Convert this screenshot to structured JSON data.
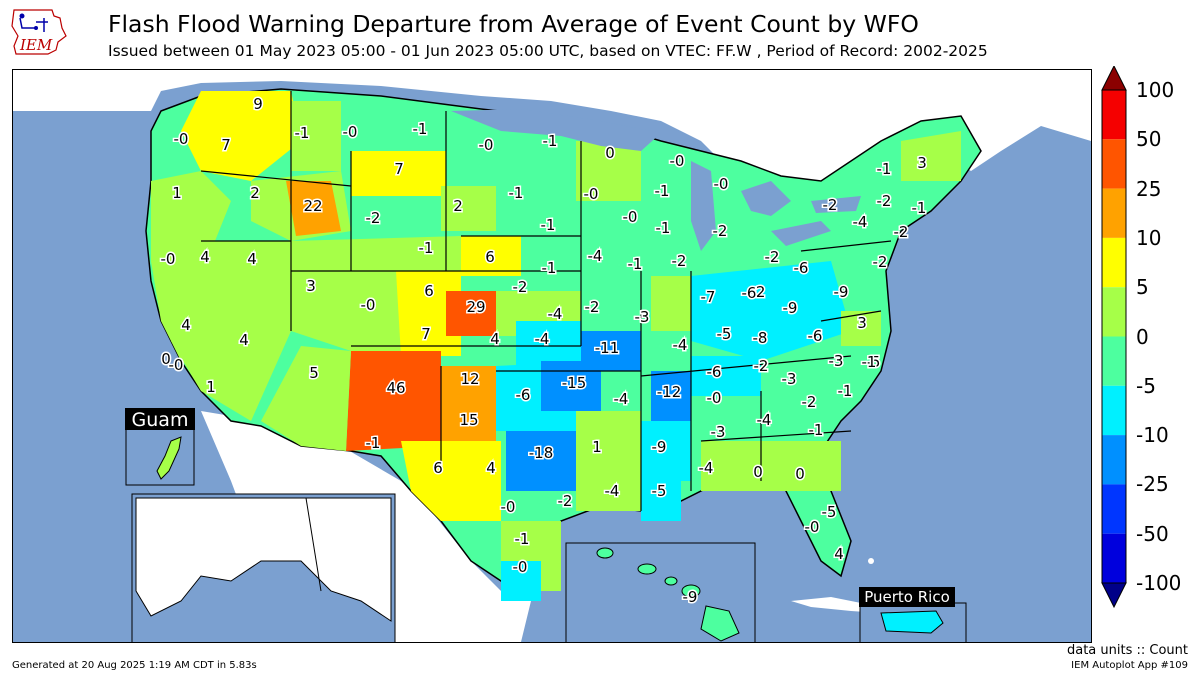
{
  "header": {
    "logo_text": "IEM",
    "title": "Flash Flood Warning Departure from Average of Event Count by WFO",
    "subtitle": "Issued between 01 May 2023 05:00 - 01 Jun 2023 05:00 UTC, based on VTEC: FF.W  , Period of Record: 2002-2025"
  },
  "colorbar": {
    "ticks": [
      "100",
      "50",
      "25",
      "10",
      "5",
      "0",
      "-5",
      "-10",
      "-25",
      "-50",
      "-100"
    ],
    "colors": [
      "#f50000",
      "#ff5500",
      "#ffa200",
      "#ffff00",
      "#a6ff48",
      "#4dff9f",
      "#00f0ff",
      "#0090ff",
      "#0036ff",
      "#0000dd"
    ],
    "over_color": "#8b0000",
    "under_color": "#000088"
  },
  "map": {
    "inset_labels": {
      "guam": "Guam",
      "puerto_rico": "Puerto Rico"
    },
    "wfo_values": [
      "9",
      "-0",
      "7",
      "1",
      "2",
      "22",
      "-1",
      "-0",
      "-1",
      "-0",
      "-1",
      "7",
      "0",
      "-0",
      "-0",
      "-1",
      "-0",
      "-1",
      "-2",
      "2",
      "-1",
      "-0",
      "-1",
      "3",
      "-1",
      "-2",
      "-2",
      "-1",
      "-0",
      "4",
      "4",
      "3",
      "-2",
      "-1",
      "-2",
      "-4",
      "-1",
      "-1",
      "-2",
      "-4",
      "-2",
      "6",
      "-4",
      "-2",
      "-3",
      "-6",
      "-2",
      "-0",
      "6",
      "-2",
      "29",
      "-0",
      "-2",
      "-4",
      "-3",
      "-6",
      "-7",
      "-9",
      "-9",
      "-2",
      "4",
      "7",
      "-6",
      "-3",
      "-11",
      "-5",
      "-8",
      "-6",
      "-4",
      "3",
      "4",
      "4",
      "5",
      "46",
      "12",
      "-6",
      "-15",
      "-4",
      "-12",
      "-6",
      "-2",
      "-3",
      "-5",
      "-1",
      "0",
      "1",
      "-0",
      "-0",
      "15",
      "-1",
      "-18",
      "1",
      "-9",
      "-3",
      "-4",
      "-2",
      "-1",
      "-0",
      "-1",
      "6",
      "4",
      "-2",
      "-4",
      "-5",
      "-4",
      "0",
      "0",
      "-0",
      "-5",
      "-0",
      "-0",
      "-1",
      "4",
      "-9"
    ]
  },
  "footer": {
    "units": "data units :: Count",
    "app": "IEM Autoplot App #109",
    "generated": "Generated at 20 Aug 2025 1:19 AM CDT in 5.83s"
  }
}
